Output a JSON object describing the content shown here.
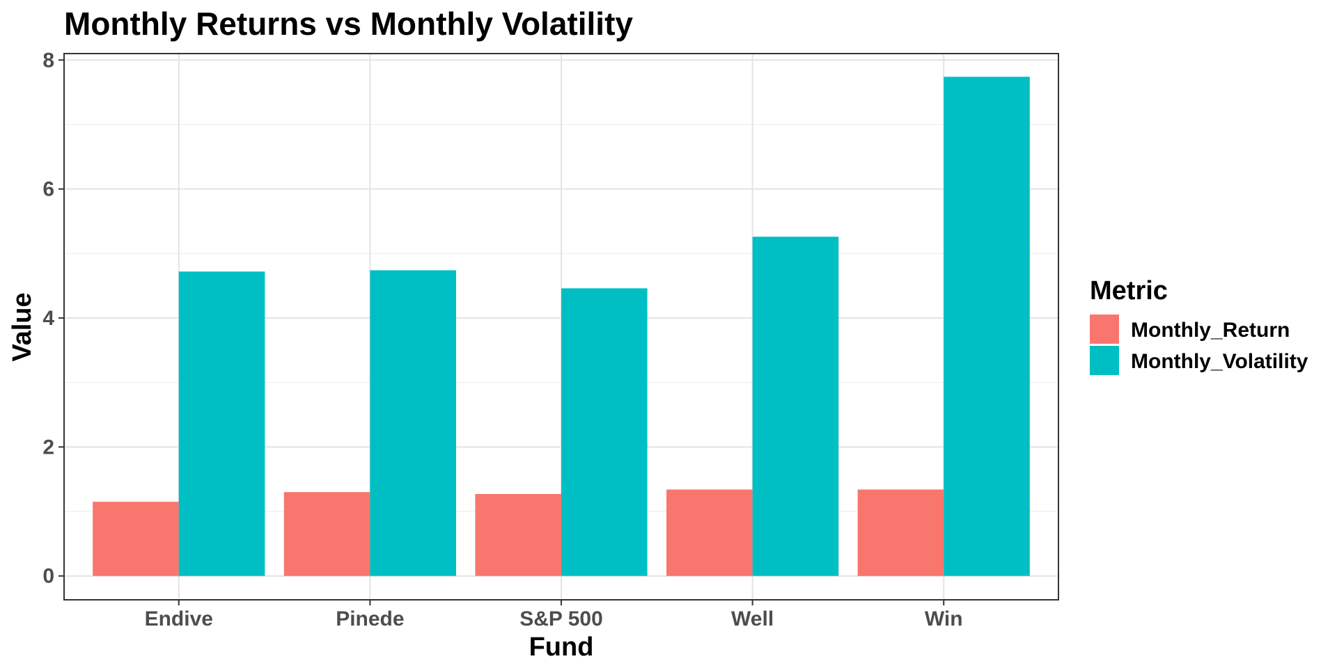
{
  "chart_data": {
    "type": "bar",
    "title": "Monthly Returns vs Monthly Volatility",
    "xlabel": "Fund",
    "ylabel": "Value",
    "categories": [
      "Endive",
      "Pinede",
      "S&P 500",
      "Well",
      "Win"
    ],
    "series": [
      {
        "name": "Monthly_Return",
        "color": "#F8766D",
        "values": [
          1.15,
          1.3,
          1.27,
          1.34,
          1.34
        ]
      },
      {
        "name": "Monthly_Volatility",
        "color": "#00BFC4",
        "values": [
          4.72,
          4.74,
          4.46,
          5.26,
          7.74
        ]
      }
    ],
    "ylim": [
      -0.37,
      8.1
    ],
    "yticks": [
      0,
      2,
      4,
      6,
      8
    ],
    "grid": true,
    "legend": {
      "title": "Metric",
      "placement": "right"
    }
  }
}
